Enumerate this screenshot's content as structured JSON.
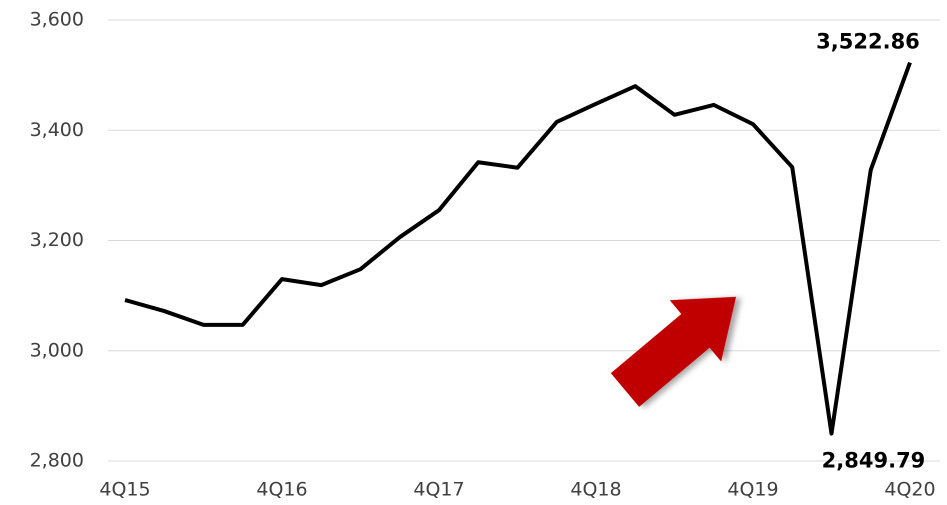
{
  "chart_data": {
    "type": "line",
    "categories": [
      "4Q15",
      null,
      null,
      null,
      "4Q16",
      null,
      null,
      null,
      "4Q17",
      null,
      null,
      null,
      "4Q18",
      null,
      null,
      null,
      "4Q19",
      null,
      null,
      null,
      "4Q20"
    ],
    "series": [
      {
        "name": null,
        "color": "#000000",
        "values": [
          3092,
          3072,
          3047,
          3047,
          3130,
          3119,
          3148,
          3206,
          3255,
          3342,
          3332,
          3415,
          3448,
          3480,
          3428,
          3446,
          3411,
          3333,
          2849.79,
          3328,
          3522.86
        ],
        "value_labels": [
          null,
          null,
          null,
          null,
          null,
          null,
          null,
          null,
          null,
          null,
          null,
          null,
          null,
          null,
          null,
          null,
          null,
          null,
          "2,849.79",
          null,
          "3,522.86"
        ]
      }
    ],
    "ylim": [
      2800,
      3600
    ],
    "yticks": [
      {
        "value": 2800,
        "label": "2,800"
      },
      {
        "value": 3000,
        "label": "3,000"
      },
      {
        "value": 3200,
        "label": "3,200"
      },
      {
        "value": 3400,
        "label": "3,400"
      },
      {
        "value": 3600,
        "label": "3,600"
      }
    ],
    "grid": true
  }
}
